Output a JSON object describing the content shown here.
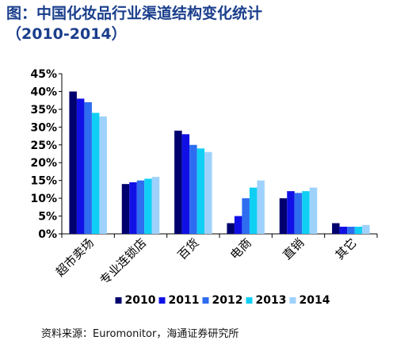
{
  "title_line1": "图：中国化妆品行业渠道结构变化统计",
  "title_line2": "（2010-2014）",
  "source": "资料来源：Euromonitor，海通证券研究所",
  "colors": {
    "title": "#1a3e8c",
    "series": [
      "#00006e",
      "#1010e6",
      "#2e6cf0",
      "#10cff5",
      "#9ed2fc"
    ]
  },
  "chart_data": {
    "type": "bar",
    "title": "",
    "xlabel": "",
    "ylabel": "",
    "ylim": [
      0,
      45
    ],
    "yticks": [
      "0%",
      "5%",
      "10%",
      "15%",
      "20%",
      "25%",
      "30%",
      "35%",
      "40%",
      "45%"
    ],
    "grid": false,
    "legend_position": "bottom",
    "categories": [
      "超市卖场",
      "专业连锁店",
      "百货",
      "电商",
      "直销",
      "其它"
    ],
    "series": [
      {
        "name": "2010",
        "values": [
          40,
          14,
          29,
          3,
          10,
          3
        ]
      },
      {
        "name": "2011",
        "values": [
          38,
          14.5,
          28,
          5,
          12,
          2
        ]
      },
      {
        "name": "2012",
        "values": [
          37,
          15,
          25,
          10,
          11.5,
          2
        ]
      },
      {
        "name": "2013",
        "values": [
          34,
          15.5,
          24,
          13,
          12,
          2
        ]
      },
      {
        "name": "2014",
        "values": [
          33,
          16,
          23,
          15,
          13,
          2.5
        ]
      }
    ]
  }
}
